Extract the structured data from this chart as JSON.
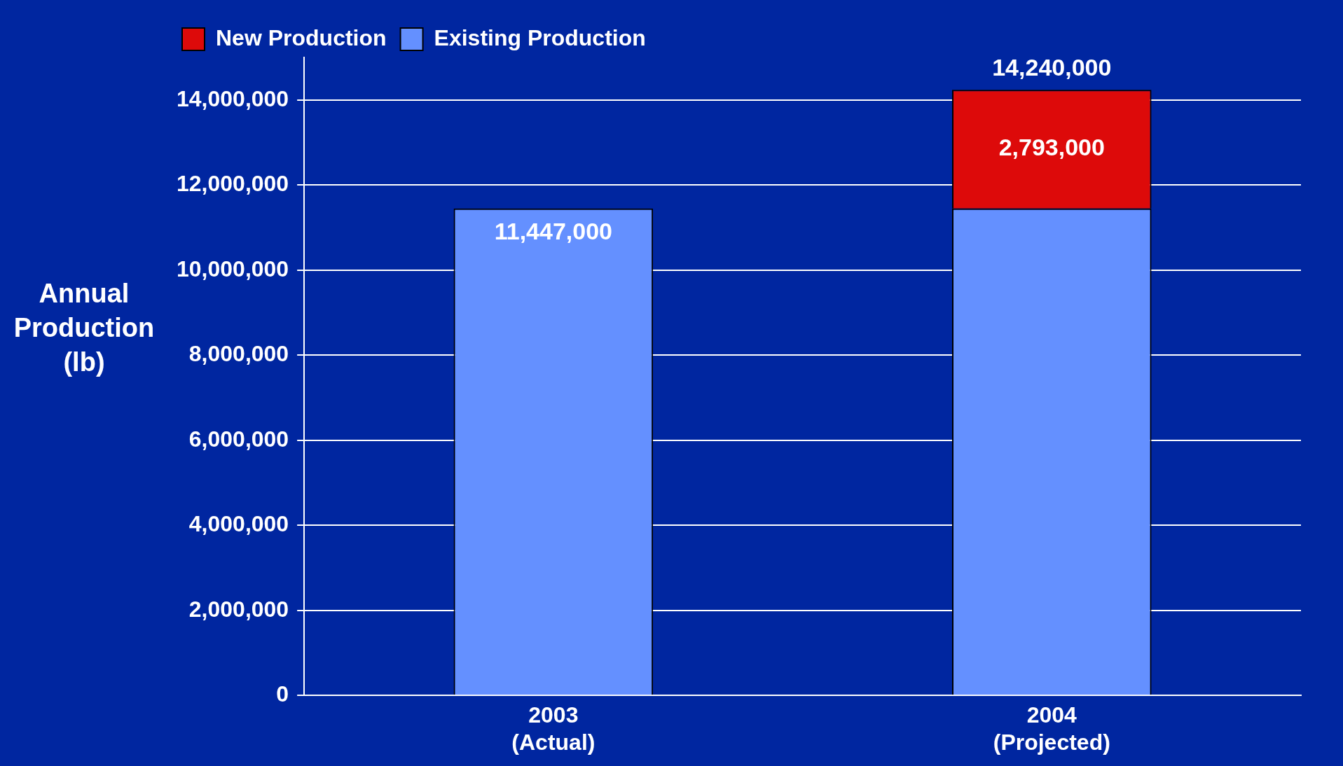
{
  "chart_data": {
    "type": "bar",
    "stacked": true,
    "ylabel": "Annual Production (lb)",
    "categories": [
      "2003 (Actual)",
      "2004 (Projected)"
    ],
    "series": [
      {
        "name": "Existing Production",
        "color": "#6490ff",
        "values": [
          11447000,
          11447000
        ],
        "value_labels": [
          "11,447,000",
          null
        ]
      },
      {
        "name": "New Production",
        "color": "#dd0a0a",
        "values": [
          null,
          2793000
        ],
        "value_labels": [
          null,
          "2,793,000"
        ]
      }
    ],
    "totals": [
      null,
      "14,240,000"
    ],
    "ylim": [
      0,
      15000000
    ],
    "yticks": [
      {
        "value": 0,
        "label": "0"
      },
      {
        "value": 2000000,
        "label": "2,000,000"
      },
      {
        "value": 4000000,
        "label": "4,000,000"
      },
      {
        "value": 6000000,
        "label": "6,000,000"
      },
      {
        "value": 8000000,
        "label": "8,000,000"
      },
      {
        "value": 10000000,
        "label": "10,000,000"
      },
      {
        "value": 12000000,
        "label": "12,000,000"
      },
      {
        "value": 14000000,
        "label": "14,000,000"
      }
    ],
    "grid": "y",
    "legend": "top left"
  }
}
